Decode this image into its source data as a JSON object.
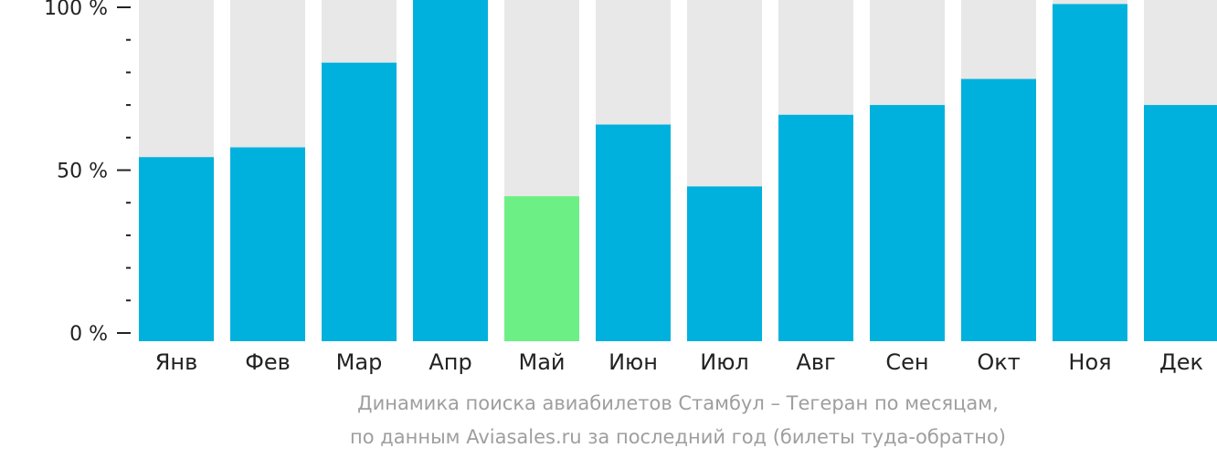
{
  "chart_data": {
    "type": "bar",
    "categories": [
      "Янв",
      "Фев",
      "Мар",
      "Апр",
      "Май",
      "Июн",
      "Июл",
      "Авг",
      "Сен",
      "Окт",
      "Ноя",
      "Дек"
    ],
    "values": [
      54,
      57,
      83,
      106,
      42,
      64,
      45,
      67,
      70,
      78,
      101,
      70
    ],
    "ylim": [
      0,
      100
    ],
    "yticks": [
      {
        "value": 0,
        "label": "0 %"
      },
      {
        "value": 50,
        "label": "50 %"
      },
      {
        "value": 100,
        "label": "100 %"
      }
    ],
    "minor_tick_step": 10,
    "highlight_index": 4,
    "grid": false,
    "legend": "none"
  },
  "colors": {
    "bar": "#00b1dd",
    "highlight": "#6cf085",
    "background_bar": "#e8e8e8",
    "axis": "#222222",
    "caption": "#9e9e9e"
  },
  "caption": {
    "line1": "Динамика поиска авиабилетов Стамбул – Тегеран по месяцам,",
    "line2": "по данным Aviasales.ru за последний год (билеты туда-обратно)"
  }
}
